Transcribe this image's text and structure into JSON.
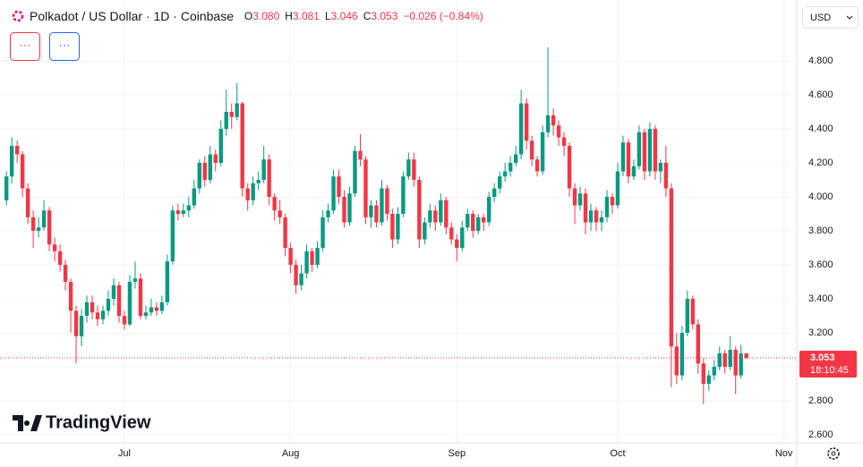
{
  "header": {
    "symbol": "Polkadot / US Dollar · 1D · Coinbase",
    "legend": [
      {
        "label": "O",
        "value": "3.080"
      },
      {
        "label": "H",
        "value": "3.081"
      },
      {
        "label": "L",
        "value": "3.046"
      },
      {
        "label": "C",
        "value": "3.053"
      }
    ],
    "change": "−0.026 (−0.84%)",
    "buttons": [
      "···",
      "···"
    ],
    "currency": "USD",
    "logo": "TradingView"
  },
  "chart_data": {
    "type": "candlestick",
    "up_color": "#089981",
    "down_color": "#f23645",
    "grid": true,
    "ylim": [
      2.553,
      5.158
    ],
    "yticks": [
      {
        "value": 2.6,
        "label": "2.600"
      },
      {
        "value": 2.8,
        "label": "2.800"
      },
      {
        "value": 3.0,
        "label": "3.000"
      },
      {
        "value": 3.2,
        "label": "3.200"
      },
      {
        "value": 3.4,
        "label": "3.400"
      },
      {
        "value": 3.6,
        "label": "3.600"
      },
      {
        "value": 3.8,
        "label": "3.800"
      },
      {
        "value": 4.0,
        "label": "4.000"
      },
      {
        "value": 4.2,
        "label": "4.200"
      },
      {
        "value": 4.4,
        "label": "4.400"
      },
      {
        "value": 4.6,
        "label": "4.600"
      },
      {
        "value": 4.8,
        "label": "4.800"
      }
    ],
    "xlim": [
      -1.2,
      147.4
    ],
    "xticks": [
      {
        "value": 22,
        "label": "Jul"
      },
      {
        "value": 53,
        "label": "Aug"
      },
      {
        "value": 84,
        "label": "Sep"
      },
      {
        "value": 114,
        "label": "Oct"
      },
      {
        "value": 145,
        "label": "Nov"
      }
    ],
    "last_price": {
      "value": 3.053,
      "label": "3.053",
      "countdown": "18:10:45"
    },
    "ohlc": [
      [
        3.98,
        4.15,
        3.95,
        4.12
      ],
      [
        4.12,
        4.35,
        4.08,
        4.3
      ],
      [
        4.3,
        4.33,
        4.2,
        4.25
      ],
      [
        4.25,
        4.27,
        4.0,
        4.05
      ],
      [
        4.05,
        4.08,
        3.84,
        3.88
      ],
      [
        3.88,
        3.92,
        3.7,
        3.8
      ],
      [
        3.8,
        3.88,
        3.76,
        3.82
      ],
      [
        3.82,
        3.98,
        3.8,
        3.92
      ],
      [
        3.92,
        3.94,
        3.68,
        3.72
      ],
      [
        3.72,
        3.76,
        3.62,
        3.68
      ],
      [
        3.68,
        3.72,
        3.56,
        3.6
      ],
      [
        3.6,
        3.63,
        3.45,
        3.5
      ],
      [
        3.5,
        3.52,
        3.2,
        3.33
      ],
      [
        3.33,
        3.36,
        3.02,
        3.18
      ],
      [
        3.18,
        3.34,
        3.12,
        3.3
      ],
      [
        3.3,
        3.42,
        3.26,
        3.38
      ],
      [
        3.38,
        3.42,
        3.28,
        3.32
      ],
      [
        3.32,
        3.36,
        3.24,
        3.28
      ],
      [
        3.28,
        3.36,
        3.25,
        3.33
      ],
      [
        3.33,
        3.45,
        3.3,
        3.4
      ],
      [
        3.4,
        3.52,
        3.36,
        3.48
      ],
      [
        3.48,
        3.5,
        3.26,
        3.3
      ],
      [
        3.3,
        3.33,
        3.22,
        3.25
      ],
      [
        3.25,
        3.54,
        3.24,
        3.5
      ],
      [
        3.5,
        3.62,
        3.46,
        3.52
      ],
      [
        3.52,
        3.55,
        3.28,
        3.3
      ],
      [
        3.3,
        3.36,
        3.28,
        3.32
      ],
      [
        3.32,
        3.4,
        3.3,
        3.35
      ],
      [
        3.35,
        3.38,
        3.3,
        3.33
      ],
      [
        3.33,
        3.42,
        3.31,
        3.38
      ],
      [
        3.38,
        3.66,
        3.36,
        3.62
      ],
      [
        3.62,
        3.95,
        3.6,
        3.92
      ],
      [
        3.92,
        3.96,
        3.86,
        3.9
      ],
      [
        3.9,
        3.96,
        3.88,
        3.92
      ],
      [
        3.92,
        4.0,
        3.88,
        3.95
      ],
      [
        3.95,
        4.1,
        3.93,
        4.05
      ],
      [
        4.05,
        4.22,
        4.02,
        4.2
      ],
      [
        4.2,
        4.24,
        4.06,
        4.1
      ],
      [
        4.1,
        4.3,
        4.08,
        4.25
      ],
      [
        4.25,
        4.28,
        4.15,
        4.2
      ],
      [
        4.2,
        4.45,
        4.18,
        4.4
      ],
      [
        4.4,
        4.63,
        4.36,
        4.5
      ],
      [
        4.5,
        4.55,
        4.4,
        4.47
      ],
      [
        4.47,
        4.67,
        4.45,
        4.55
      ],
      [
        4.55,
        4.56,
        4.0,
        4.05
      ],
      [
        4.05,
        4.08,
        3.92,
        3.98
      ],
      [
        3.98,
        4.12,
        3.95,
        4.08
      ],
      [
        4.08,
        4.15,
        4.04,
        4.1
      ],
      [
        4.1,
        4.3,
        4.08,
        4.22
      ],
      [
        4.22,
        4.25,
        3.95,
        4.0
      ],
      [
        4.0,
        4.02,
        3.86,
        3.92
      ],
      [
        3.92,
        3.98,
        3.84,
        3.88
      ],
      [
        3.88,
        3.9,
        3.65,
        3.7
      ],
      [
        3.7,
        3.73,
        3.55,
        3.6
      ],
      [
        3.6,
        3.63,
        3.43,
        3.48
      ],
      [
        3.48,
        3.6,
        3.45,
        3.55
      ],
      [
        3.55,
        3.72,
        3.52,
        3.68
      ],
      [
        3.68,
        3.7,
        3.56,
        3.6
      ],
      [
        3.6,
        3.74,
        3.58,
        3.7
      ],
      [
        3.7,
        3.92,
        3.68,
        3.88
      ],
      [
        3.88,
        3.96,
        3.85,
        3.92
      ],
      [
        3.92,
        4.16,
        3.9,
        4.12
      ],
      [
        4.12,
        4.16,
        3.96,
        4.0
      ],
      [
        4.0,
        4.04,
        3.82,
        3.85
      ],
      [
        3.85,
        4.06,
        3.83,
        4.02
      ],
      [
        4.02,
        4.3,
        4.0,
        4.27
      ],
      [
        4.27,
        4.37,
        4.18,
        4.22
      ],
      [
        4.22,
        4.24,
        3.84,
        3.88
      ],
      [
        3.88,
        3.98,
        3.82,
        3.95
      ],
      [
        3.95,
        3.98,
        3.82,
        3.85
      ],
      [
        3.85,
        4.1,
        3.83,
        4.05
      ],
      [
        4.05,
        4.07,
        3.86,
        3.9
      ],
      [
        3.9,
        3.93,
        3.7,
        3.75
      ],
      [
        3.75,
        3.94,
        3.72,
        3.9
      ],
      [
        3.9,
        4.15,
        3.88,
        4.12
      ],
      [
        4.12,
        4.26,
        4.1,
        4.22
      ],
      [
        4.22,
        4.26,
        4.06,
        4.1
      ],
      [
        4.1,
        4.12,
        3.7,
        3.75
      ],
      [
        3.75,
        3.88,
        3.72,
        3.85
      ],
      [
        3.85,
        3.96,
        3.82,
        3.92
      ],
      [
        3.92,
        3.95,
        3.8,
        3.85
      ],
      [
        3.85,
        4.02,
        3.83,
        3.98
      ],
      [
        3.98,
        4.0,
        3.78,
        3.82
      ],
      [
        3.82,
        3.85,
        3.72,
        3.75
      ],
      [
        3.75,
        3.78,
        3.62,
        3.7
      ],
      [
        3.7,
        3.86,
        3.68,
        3.82
      ],
      [
        3.82,
        3.93,
        3.8,
        3.9
      ],
      [
        3.9,
        3.92,
        3.76,
        3.8
      ],
      [
        3.8,
        3.9,
        3.78,
        3.88
      ],
      [
        3.88,
        3.9,
        3.8,
        3.85
      ],
      [
        3.85,
        4.03,
        3.83,
        4.0
      ],
      [
        4.0,
        4.08,
        3.97,
        4.05
      ],
      [
        4.05,
        4.15,
        4.02,
        4.12
      ],
      [
        4.12,
        4.2,
        4.09,
        4.15
      ],
      [
        4.15,
        4.24,
        4.12,
        4.2
      ],
      [
        4.2,
        4.3,
        4.18,
        4.25
      ],
      [
        4.25,
        4.63,
        4.22,
        4.55
      ],
      [
        4.55,
        4.58,
        4.28,
        4.33
      ],
      [
        4.33,
        4.36,
        4.18,
        4.22
      ],
      [
        4.22,
        4.24,
        4.12,
        4.15
      ],
      [
        4.15,
        4.42,
        4.13,
        4.38
      ],
      [
        4.38,
        4.88,
        4.35,
        4.48
      ],
      [
        4.48,
        4.52,
        4.36,
        4.42
      ],
      [
        4.42,
        4.45,
        4.3,
        4.35
      ],
      [
        4.35,
        4.38,
        4.24,
        4.3
      ],
      [
        4.3,
        4.32,
        4.0,
        4.05
      ],
      [
        4.05,
        4.08,
        3.84,
        3.95
      ],
      [
        3.95,
        4.06,
        3.92,
        4.02
      ],
      [
        4.02,
        4.05,
        3.78,
        3.85
      ],
      [
        3.85,
        3.96,
        3.8,
        3.92
      ],
      [
        3.92,
        3.94,
        3.8,
        3.85
      ],
      [
        3.85,
        3.92,
        3.8,
        3.88
      ],
      [
        3.88,
        4.04,
        3.85,
        4.0
      ],
      [
        4.0,
        4.02,
        3.9,
        3.95
      ],
      [
        3.95,
        4.2,
        3.93,
        4.15
      ],
      [
        4.15,
        4.36,
        4.12,
        4.32
      ],
      [
        4.32,
        4.34,
        4.08,
        4.12
      ],
      [
        4.12,
        4.22,
        4.1,
        4.18
      ],
      [
        4.18,
        4.42,
        4.16,
        4.38
      ],
      [
        4.38,
        4.4,
        4.1,
        4.15
      ],
      [
        4.15,
        4.44,
        4.12,
        4.4
      ],
      [
        4.4,
        4.42,
        4.1,
        4.15
      ],
      [
        4.15,
        4.22,
        4.08,
        4.2
      ],
      [
        4.2,
        4.3,
        4.0,
        4.05
      ],
      [
        4.05,
        4.08,
        2.88,
        3.12
      ],
      [
        3.12,
        3.2,
        2.9,
        2.95
      ],
      [
        2.95,
        3.24,
        2.92,
        3.2
      ],
      [
        3.2,
        3.45,
        3.18,
        3.4
      ],
      [
        3.4,
        3.42,
        3.22,
        3.25
      ],
      [
        3.25,
        3.28,
        2.96,
        3.02
      ],
      [
        3.02,
        3.05,
        2.78,
        2.9
      ],
      [
        2.9,
        2.98,
        2.86,
        2.95
      ],
      [
        2.95,
        3.04,
        2.92,
        3.0
      ],
      [
        3.0,
        3.12,
        2.98,
        3.08
      ],
      [
        3.08,
        3.1,
        2.96,
        3.0
      ],
      [
        3.0,
        3.18,
        2.98,
        3.1
      ],
      [
        3.1,
        3.12,
        2.84,
        2.95
      ],
      [
        2.95,
        3.13,
        2.93,
        3.08
      ],
      [
        3.08,
        3.081,
        3.046,
        3.053
      ]
    ]
  }
}
